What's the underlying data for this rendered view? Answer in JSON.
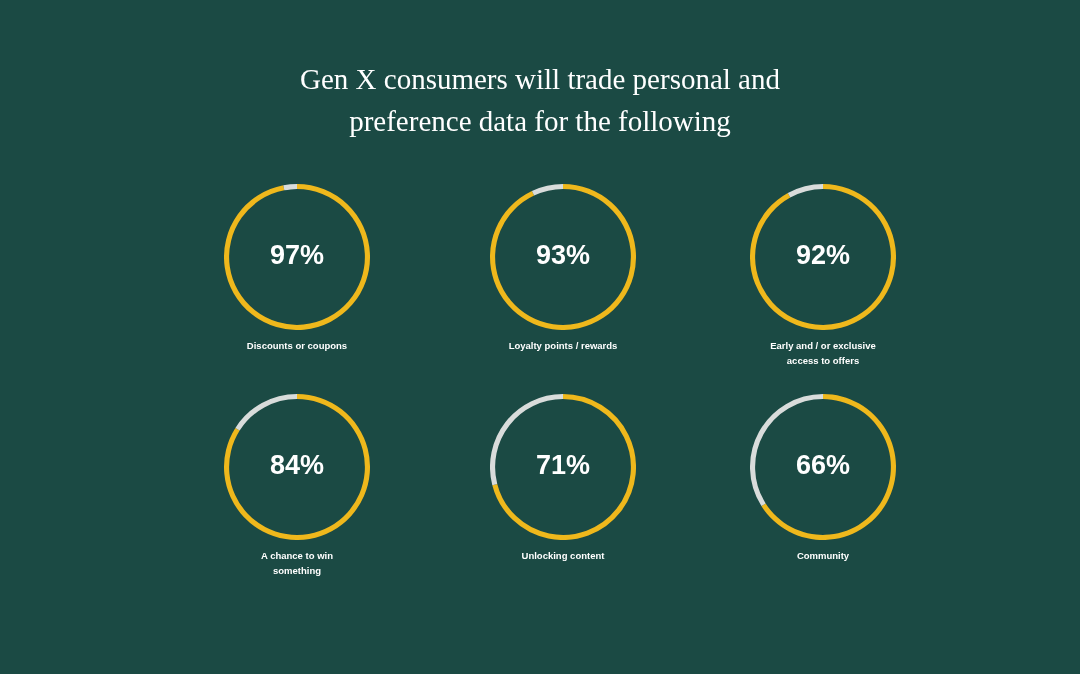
{
  "chart_data": [
    {
      "type": "other",
      "title": "Gen X consumers will trade personal and preference data for the following"
    },
    {
      "type": "donut",
      "title": "Discounts or coupons",
      "categories": [
        null,
        null
      ],
      "values": [
        97,
        3
      ],
      "colors": [
        "#efb81c",
        "#d9dcdb"
      ],
      "value_labels": [
        "97%",
        null
      ]
    },
    {
      "type": "donut",
      "title": "Loyalty points / rewards",
      "categories": [
        null,
        null
      ],
      "values": [
        93,
        7
      ],
      "colors": [
        "#efb81c",
        "#d9dcdb"
      ],
      "value_labels": [
        "93%",
        null
      ]
    },
    {
      "type": "donut",
      "title": "Early and / or exclusive access to offers",
      "categories": [
        null,
        null
      ],
      "values": [
        92,
        8
      ],
      "colors": [
        "#efb81c",
        "#d9dcdb"
      ],
      "value_labels": [
        "92%",
        null
      ]
    },
    {
      "type": "donut",
      "title": "A chance to win something",
      "categories": [
        null,
        null
      ],
      "values": [
        84,
        16
      ],
      "colors": [
        "#efb81c",
        "#d9dcdb"
      ],
      "value_labels": [
        "84%",
        null
      ]
    },
    {
      "type": "donut",
      "title": "Unlocking content",
      "categories": [
        null,
        null
      ],
      "values": [
        71,
        29
      ],
      "colors": [
        "#efb81c",
        "#d9dcdb"
      ],
      "value_labels": [
        "71%",
        null
      ]
    },
    {
      "type": "donut",
      "title": "Community",
      "categories": [
        null,
        null
      ],
      "values": [
        66,
        34
      ],
      "colors": [
        "#efb81c",
        "#d9dcdb"
      ],
      "value_labels": [
        "66%",
        null
      ]
    }
  ]
}
